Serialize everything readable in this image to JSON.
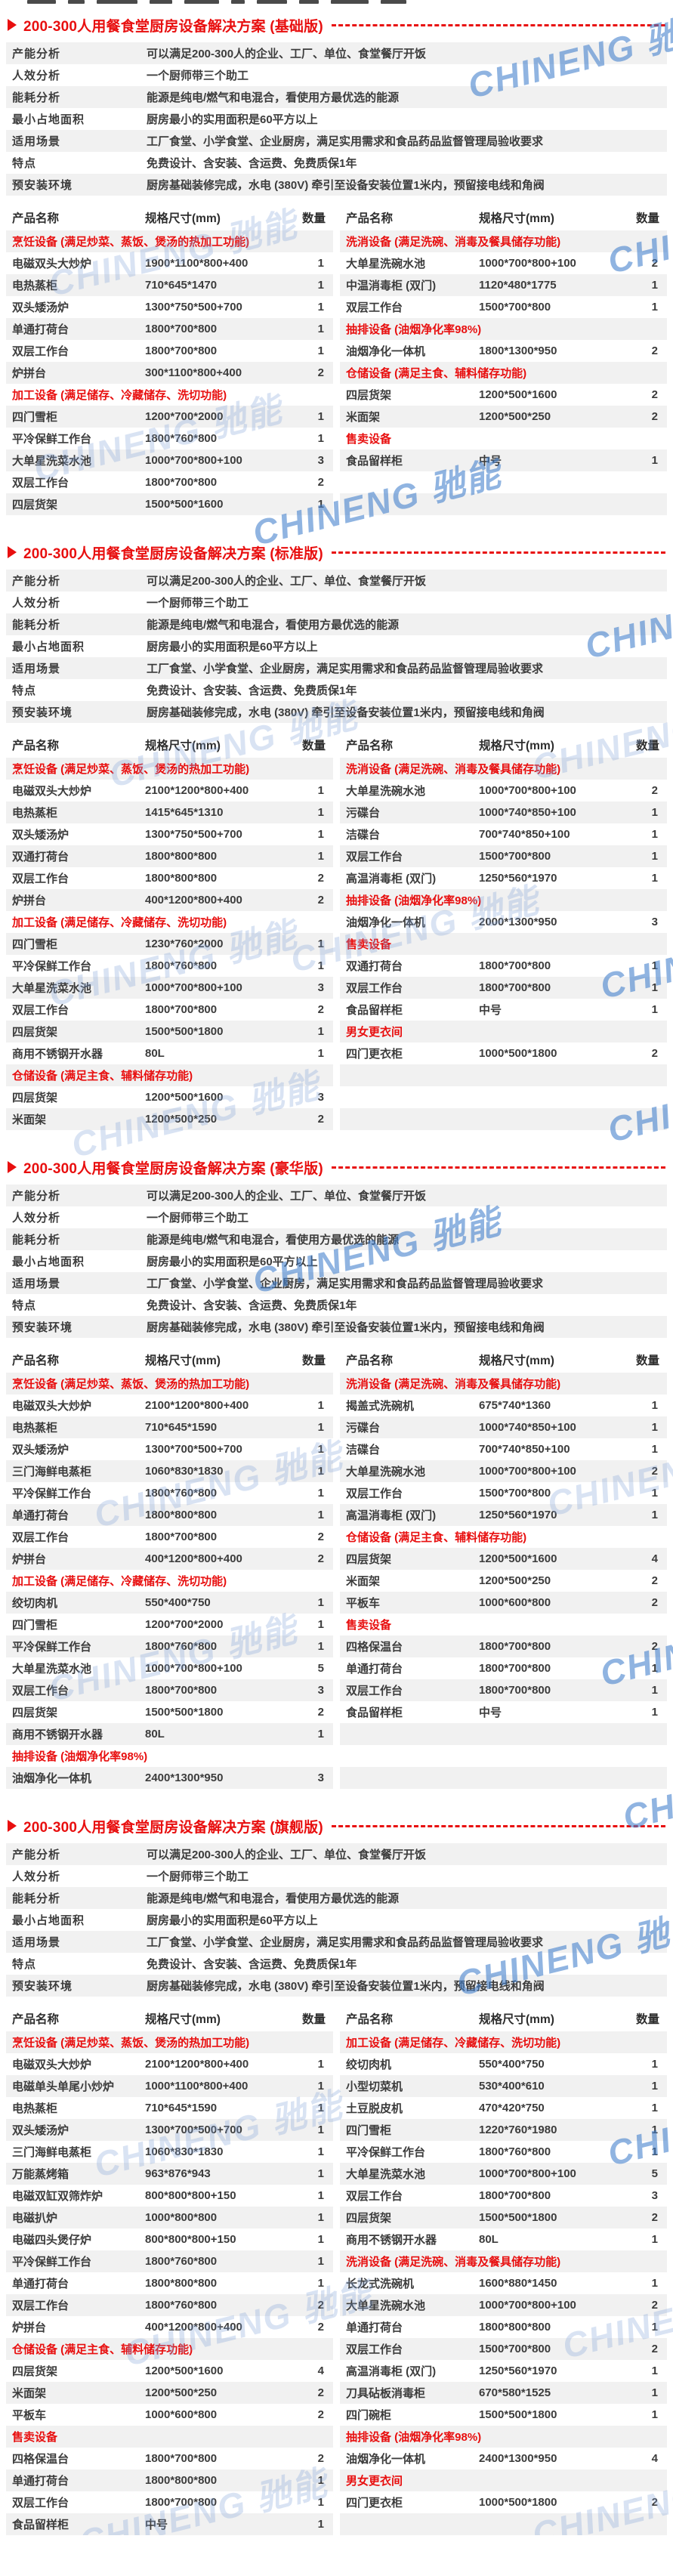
{
  "page": {
    "watermark_text": "CHINENG 驰能",
    "colors": {
      "accent_red": "#e80f0f",
      "row_gray": "#f1f1f1",
      "text": "#3c3c3c"
    }
  },
  "table_headers": {
    "name": "产品名称",
    "spec": "规格尺寸(mm)",
    "qty": "数量"
  },
  "sections": [
    {
      "title": "200-300人用餐食堂厨房设备解决方案 (基础版)",
      "attributes": [
        {
          "label": "产能分析",
          "value": "可以满足200-300人的企业、工厂、单位、食堂餐厅开饭"
        },
        {
          "label": "人效分析",
          "value": "一个厨师带三个助工"
        },
        {
          "label": "能耗分析",
          "value": "能源是纯电/燃气和电混合，看使用方最优选的能源"
        },
        {
          "label": "最小占地面积",
          "value": "厨房最小的实用面积是60平方以上"
        },
        {
          "label": "适用场景",
          "value": "工厂食堂、小学食堂、企业厨房，满足实用需求和食品药品监督管理局验收要求"
        },
        {
          "label": "特点",
          "value": "免费设计、含安装、含运费、免费质保1年"
        },
        {
          "label": "预安装环境",
          "value": "厨房基础装修完成，水电 (380V) 牵引至设备安装位置1米内，预留接电线和角阀"
        }
      ],
      "left_rows": [
        {
          "cat": "烹饪设备 (满足炒菜、蒸饭、煲汤的热加工功能)"
        },
        {
          "name": "电磁双头大炒炉",
          "spec": "1900*1100*800+400",
          "qty": "1"
        },
        {
          "name": "电热蒸柜",
          "spec": "710*645*1470",
          "qty": "1"
        },
        {
          "name": "双头矮汤炉",
          "spec": "1300*750*500+700",
          "qty": "1"
        },
        {
          "name": "单通打荷台",
          "spec": "1800*700*800",
          "qty": "1"
        },
        {
          "name": "双层工作台",
          "spec": "1800*700*800",
          "qty": "1"
        },
        {
          "name": "炉拼台",
          "spec": "300*1100*800+400",
          "qty": "2"
        },
        {
          "cat": "加工设备 (满足储存、冷藏储存、洗切功能)"
        },
        {
          "name": "四门雪柜",
          "spec": "1200*700*2000",
          "qty": "1"
        },
        {
          "name": "平冷保鲜工作台",
          "spec": "1800*760*800",
          "qty": "1"
        },
        {
          "name": "大单星洗菜水池",
          "spec": "1000*700*800+100",
          "qty": "3"
        },
        {
          "name": "双层工作台",
          "spec": "1800*700*800",
          "qty": "2"
        },
        {
          "name": "四层货架",
          "spec": "1500*500*1600",
          "qty": "1"
        }
      ],
      "right_rows": [
        {
          "cat": "洗消设备 (满足洗碗、消毒及餐具储存功能)"
        },
        {
          "name": "大单星洗碗水池",
          "spec": "1000*700*800+100",
          "qty": "2"
        },
        {
          "name": "中温消毒柜 (双门)",
          "spec": "1120*480*1775",
          "qty": "1"
        },
        {
          "name": "双层工作台",
          "spec": "1500*700*800",
          "qty": "1"
        },
        {
          "cat": "抽排设备 (油烟净化率98%)"
        },
        {
          "name": "油烟净化一体机",
          "spec": "1800*1300*950",
          "qty": "2"
        },
        {
          "cat": "仓储设备 (满足主食、辅料储存功能)"
        },
        {
          "name": "四层货架",
          "spec": "1200*500*1600",
          "qty": "2"
        },
        {
          "name": "米面架",
          "spec": "1200*500*250",
          "qty": "2"
        },
        {
          "cat": "售卖设备"
        },
        {
          "name": "食品留样柜",
          "spec": "中号",
          "qty": "1"
        },
        {},
        {}
      ]
    },
    {
      "title": "200-300人用餐食堂厨房设备解决方案 (标准版)",
      "attributes": [
        {
          "label": "产能分析",
          "value": "可以满足200-300人的企业、工厂、单位、食堂餐厅开饭"
        },
        {
          "label": "人效分析",
          "value": "一个厨师带三个助工"
        },
        {
          "label": "能耗分析",
          "value": "能源是纯电/燃气和电混合，看使用方最优选的能源"
        },
        {
          "label": "最小占地面积",
          "value": "厨房最小的实用面积是60平方以上"
        },
        {
          "label": "适用场景",
          "value": "工厂食堂、小学食堂、企业厨房，满足实用需求和食品药品监督管理局验收要求"
        },
        {
          "label": "特点",
          "value": "免费设计、含安装、含运费、免费质保1年"
        },
        {
          "label": "预安装环境",
          "value": "厨房基础装修完成，水电 (380V) 牵引至设备安装位置1米内，预留接电线和角阀"
        }
      ],
      "left_rows": [
        {
          "cat": "烹饪设备 (满足炒菜、蒸饭、煲汤的热加工功能)"
        },
        {
          "name": "电磁双头大炒炉",
          "spec": "2100*1200*800+400",
          "qty": "1"
        },
        {
          "name": "电热蒸柜",
          "spec": "1415*645*1310",
          "qty": "1"
        },
        {
          "name": "双头矮汤炉",
          "spec": "1300*750*500+700",
          "qty": "1"
        },
        {
          "name": "双通打荷台",
          "spec": "1800*800*800",
          "qty": "1"
        },
        {
          "name": "双层工作台",
          "spec": "1800*800*800",
          "qty": "2"
        },
        {
          "name": "炉拼台",
          "spec": "400*1200*800+400",
          "qty": "2"
        },
        {
          "cat": "加工设备 (满足储存、冷藏储存、洗切功能)"
        },
        {
          "name": "四门雪柜",
          "spec": "1230*760*2000",
          "qty": "1"
        },
        {
          "name": "平冷保鲜工作台",
          "spec": "1800*760*800",
          "qty": "1"
        },
        {
          "name": "大单星洗菜水池",
          "spec": "1000*700*800+100",
          "qty": "3"
        },
        {
          "name": "双层工作台",
          "spec": "1800*700*800",
          "qty": "2"
        },
        {
          "name": "四层货架",
          "spec": "1500*500*1800",
          "qty": "1"
        },
        {
          "name": "商用不锈钢开水器",
          "spec": "80L",
          "qty": "1"
        },
        {
          "cat": "仓储设备 (满足主食、辅料储存功能)"
        },
        {
          "name": "四层货架",
          "spec": "1200*500*1600",
          "qty": "3"
        },
        {
          "name": "米面架",
          "spec": "1200*500*250",
          "qty": "2"
        }
      ],
      "right_rows": [
        {
          "cat": "洗消设备 (满足洗碗、消毒及餐具储存功能)"
        },
        {
          "name": "大单星洗碗水池",
          "spec": "1000*700*800+100",
          "qty": "2"
        },
        {
          "name": "污碟台",
          "spec": "1000*740*850+100",
          "qty": "1"
        },
        {
          "name": "洁碟台",
          "spec": "700*740*850+100",
          "qty": "1"
        },
        {
          "name": "双层工作台",
          "spec": "1500*700*800",
          "qty": "1"
        },
        {
          "name": "高温消毒柜 (双门)",
          "spec": "1250*560*1970",
          "qty": "1"
        },
        {
          "cat": "抽排设备 (油烟净化率98%)"
        },
        {
          "name": "油烟净化一体机",
          "spec": "2000*1300*950",
          "qty": "3"
        },
        {
          "cat": "售卖设备"
        },
        {
          "name": "双通打荷台",
          "spec": "1800*700*800",
          "qty": "1"
        },
        {
          "name": "双层工作台",
          "spec": "1800*700*800",
          "qty": "1"
        },
        {
          "name": "食品留样柜",
          "spec": "中号",
          "qty": "1"
        },
        {
          "cat": "男女更衣间"
        },
        {
          "name": "四门更衣柜",
          "spec": "1000*500*1800",
          "qty": "2"
        },
        {},
        {},
        {}
      ]
    },
    {
      "title": "200-300人用餐食堂厨房设备解决方案 (豪华版)",
      "attributes": [
        {
          "label": "产能分析",
          "value": "可以满足200-300人的企业、工厂、单位、食堂餐厅开饭"
        },
        {
          "label": "人效分析",
          "value": "一个厨师带三个助工"
        },
        {
          "label": "能耗分析",
          "value": "能源是纯电/燃气和电混合，看使用方最优选的能源"
        },
        {
          "label": "最小占地面积",
          "value": "厨房最小的实用面积是60平方以上"
        },
        {
          "label": "适用场景",
          "value": "工厂食堂、小学食堂、企业厨房，满足实用需求和食品药品监督管理局验收要求"
        },
        {
          "label": "特点",
          "value": "免费设计、含安装、含运费、免费质保1年"
        },
        {
          "label": "预安装环境",
          "value": "厨房基础装修完成，水电 (380V) 牵引至设备安装位置1米内，预留接电线和角阀"
        }
      ],
      "left_rows": [
        {
          "cat": "烹饪设备 (满足炒菜、蒸饭、煲汤的热加工功能)"
        },
        {
          "name": "电磁双头大炒炉",
          "spec": "2100*1200*800+400",
          "qty": "1"
        },
        {
          "name": "电热蒸柜",
          "spec": "710*645*1590",
          "qty": "1"
        },
        {
          "name": "双头矮汤炉",
          "spec": "1300*700*500+700",
          "qty": "1"
        },
        {
          "name": "三门海鲜电蒸柜",
          "spec": "1060*830*1830",
          "qty": "1"
        },
        {
          "name": "平冷保鲜工作台",
          "spec": "1800*760*800",
          "qty": "1"
        },
        {
          "name": "单通打荷台",
          "spec": "1800*800*800",
          "qty": "1"
        },
        {
          "name": "双层工作台",
          "spec": "1800*700*800",
          "qty": "2"
        },
        {
          "name": "炉拼台",
          "spec": "400*1200*800+400",
          "qty": "2"
        },
        {
          "cat": "加工设备 (满足储存、冷藏储存、洗切功能)"
        },
        {
          "name": "绞切肉机",
          "spec": "550*400*750",
          "qty": "1"
        },
        {
          "name": "四门雪柜",
          "spec": "1200*700*2000",
          "qty": "1"
        },
        {
          "name": "平冷保鲜工作台",
          "spec": "1800*760*800",
          "qty": "1"
        },
        {
          "name": "大单星洗菜水池",
          "spec": "1000*700*800+100",
          "qty": "5"
        },
        {
          "name": "双层工作台",
          "spec": "1800*700*800",
          "qty": "3"
        },
        {
          "name": "四层货架",
          "spec": "1500*500*1800",
          "qty": "2"
        },
        {
          "name": "商用不锈钢开水器",
          "spec": "80L",
          "qty": "1"
        },
        {
          "cat": "抽排设备 (油烟净化率98%)"
        },
        {
          "name": "油烟净化一体机",
          "spec": "2400*1300*950",
          "qty": "3"
        }
      ],
      "right_rows": [
        {
          "cat": "洗消设备 (满足洗碗、消毒及餐具储存功能)"
        },
        {
          "name": "揭盖式洗碗机",
          "spec": "675*740*1360",
          "qty": "1"
        },
        {
          "name": "污碟台",
          "spec": "1000*740*850+100",
          "qty": "1"
        },
        {
          "name": "洁碟台",
          "spec": "700*740*850+100",
          "qty": "1"
        },
        {
          "name": "大单星洗碗水池",
          "spec": "1000*700*800+100",
          "qty": "2"
        },
        {
          "name": "双层工作台",
          "spec": "1500*700*800",
          "qty": "1"
        },
        {
          "name": "高温消毒柜 (双门)",
          "spec": "1250*560*1970",
          "qty": "1"
        },
        {
          "cat": "仓储设备 (满足主食、辅料储存功能)"
        },
        {
          "name": "四层货架",
          "spec": "1200*500*1600",
          "qty": "4"
        },
        {
          "name": "米面架",
          "spec": "1200*500*250",
          "qty": "2"
        },
        {
          "name": "平板车",
          "spec": "1000*600*800",
          "qty": "2"
        },
        {
          "cat": "售卖设备"
        },
        {
          "name": "四格保温台",
          "spec": "1800*700*800",
          "qty": "2"
        },
        {
          "name": "单通打荷台",
          "spec": "1800*700*800",
          "qty": "1"
        },
        {
          "name": "双层工作台",
          "spec": "1800*700*800",
          "qty": "1"
        },
        {
          "name": "食品留样柜",
          "spec": "中号",
          "qty": "1"
        },
        {},
        {},
        {}
      ]
    },
    {
      "title": "200-300人用餐食堂厨房设备解决方案 (旗舰版)",
      "attributes": [
        {
          "label": "产能分析",
          "value": "可以满足200-300人的企业、工厂、单位、食堂餐厅开饭"
        },
        {
          "label": "人效分析",
          "value": "一个厨师带三个助工"
        },
        {
          "label": "能耗分析",
          "value": "能源是纯电/燃气和电混合，看使用方最优选的能源"
        },
        {
          "label": "最小占地面积",
          "value": "厨房最小的实用面积是60平方以上"
        },
        {
          "label": "适用场景",
          "value": "工厂食堂、小学食堂、企业厨房，满足实用需求和食品药品监督管理局验收要求"
        },
        {
          "label": "特点",
          "value": "免费设计、含安装、含运费、免费质保1年"
        },
        {
          "label": "预安装环境",
          "value": "厨房基础装修完成，水电 (380V) 牵引至设备安装位置1米内，预留接电线和角阀"
        }
      ],
      "left_rows": [
        {
          "cat": "烹饪设备 (满足炒菜、蒸饭、煲汤的热加工功能)"
        },
        {
          "name": "电磁双头大炒炉",
          "spec": "2100*1200*800+400",
          "qty": "1"
        },
        {
          "name": "电磁单头单尾小炒炉",
          "spec": "1000*1100*800+400",
          "qty": "1"
        },
        {
          "name": "电热蒸柜",
          "spec": "710*645*1590",
          "qty": "1"
        },
        {
          "name": "双头矮汤炉",
          "spec": "1300*700*500+700",
          "qty": "1"
        },
        {
          "name": "三门海鲜电蒸柜",
          "spec": "1060*830*1830",
          "qty": "1"
        },
        {
          "name": "万能蒸烤箱",
          "spec": "963*876*943",
          "qty": "1"
        },
        {
          "name": "电磁双缸双筛炸炉",
          "spec": "800*800*800+150",
          "qty": "1"
        },
        {
          "name": "电磁扒炉",
          "spec": "1000*800*800",
          "qty": "1"
        },
        {
          "name": "电磁四头煲仔炉",
          "spec": "800*800*800+150",
          "qty": "1"
        },
        {
          "name": "平冷保鲜工作台",
          "spec": "1800*760*800",
          "qty": "1"
        },
        {
          "name": "单通打荷台",
          "spec": "1800*800*800",
          "qty": "1"
        },
        {
          "name": "双层工作台",
          "spec": "1800*760*800",
          "qty": "2"
        },
        {
          "name": "炉拼台",
          "spec": "400*1200*800+400",
          "qty": "2"
        },
        {
          "cat": "仓储设备 (满足主食、辅料储存功能)"
        },
        {
          "name": "四层货架",
          "spec": "1200*500*1600",
          "qty": "4"
        },
        {
          "name": "米面架",
          "spec": "1200*500*250",
          "qty": "2"
        },
        {
          "name": "平板车",
          "spec": "1000*600*800",
          "qty": "2"
        },
        {
          "cat": "售卖设备"
        },
        {
          "name": "四格保温台",
          "spec": "1800*700*800",
          "qty": "2"
        },
        {
          "name": "单通打荷台",
          "spec": "1800*800*800",
          "qty": "1"
        },
        {
          "name": "双层工作台",
          "spec": "1800*700*800",
          "qty": "1"
        },
        {
          "name": "食品留样柜",
          "spec": "中号",
          "qty": "1"
        }
      ],
      "right_rows": [
        {
          "cat": "加工设备 (满足储存、冷藏储存、洗切功能)"
        },
        {
          "name": "绞切肉机",
          "spec": "550*400*750",
          "qty": "1"
        },
        {
          "name": "小型切菜机",
          "spec": "530*400*610",
          "qty": "1"
        },
        {
          "name": "土豆脱皮机",
          "spec": "470*420*750",
          "qty": "1"
        },
        {
          "name": "四门雪柜",
          "spec": "1220*760*1980",
          "qty": "1"
        },
        {
          "name": "平冷保鲜工作台",
          "spec": "1800*760*800",
          "qty": "1"
        },
        {
          "name": "大单星洗菜水池",
          "spec": "1000*700*800+100",
          "qty": "5"
        },
        {
          "name": "双层工作台",
          "spec": "1800*700*800",
          "qty": "3"
        },
        {
          "name": "四层货架",
          "spec": "1500*500*1800",
          "qty": "2"
        },
        {
          "name": "商用不锈钢开水器",
          "spec": "80L",
          "qty": "1"
        },
        {
          "cat": "洗消设备 (满足洗碗、消毒及餐具储存功能)"
        },
        {
          "name": "长龙式洗碗机",
          "spec": "1600*880*1450",
          "qty": "1"
        },
        {
          "name": "大单星洗碗水池",
          "spec": "1000*700*800+100",
          "qty": "2"
        },
        {
          "name": "单通打荷台",
          "spec": "1800*800*800",
          "qty": "1"
        },
        {
          "name": "双层工作台",
          "spec": "1500*700*800",
          "qty": "2"
        },
        {
          "name": "高温消毒柜 (双门)",
          "spec": "1250*560*1970",
          "qty": "1"
        },
        {
          "name": "刀具砧板消毒柜",
          "spec": "670*580*1525",
          "qty": "1"
        },
        {
          "name": "四门碗柜",
          "spec": "1500*500*1800",
          "qty": "1"
        },
        {
          "cat": "抽排设备 (油烟净化率98%)"
        },
        {
          "name": "油烟净化一体机",
          "spec": "2400*1300*950",
          "qty": "4"
        },
        {
          "cat": "男女更衣间"
        },
        {
          "name": "四门更衣柜",
          "spec": "1000*500*1800",
          "qty": "2"
        },
        {}
      ]
    }
  ]
}
